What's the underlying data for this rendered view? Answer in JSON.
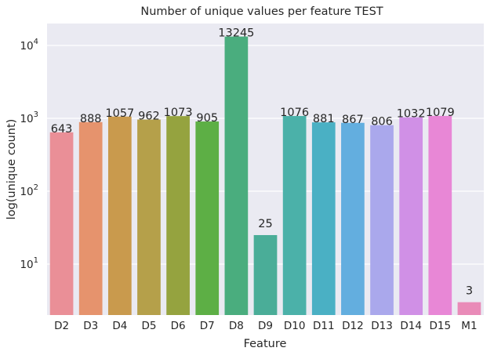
{
  "chart_data": {
    "type": "bar",
    "title": "Number of unique values per feature TEST",
    "xlabel": "Feature",
    "ylabel": "log(unique count)",
    "yscale": "log",
    "ylim": [
      2,
      20000
    ],
    "yticks": [
      {
        "value": 10,
        "base": "10",
        "exp": "1"
      },
      {
        "value": 100,
        "base": "10",
        "exp": "2"
      },
      {
        "value": 1000,
        "base": "10",
        "exp": "3"
      },
      {
        "value": 10000,
        "base": "10",
        "exp": "4"
      }
    ],
    "grid": true,
    "categories": [
      "D2",
      "D3",
      "D4",
      "D5",
      "D6",
      "D7",
      "D8",
      "D9",
      "D10",
      "D11",
      "D12",
      "D13",
      "D14",
      "D15",
      "M1"
    ],
    "values": [
      643,
      888,
      1057,
      962,
      1073,
      905,
      13245,
      25,
      1076,
      881,
      867,
      806,
      1032,
      1079,
      3
    ],
    "data_labels": [
      "643",
      "888",
      "1057",
      "962",
      "1073",
      "905",
      "13245",
      "25",
      "1076",
      "881",
      "867",
      "806",
      "1032",
      "1079",
      "3"
    ],
    "colors": [
      "#ea8f97",
      "#e6936d",
      "#c99a4d",
      "#b5a04a",
      "#95a33f",
      "#5daf45",
      "#4aad7e",
      "#4aad98",
      "#4bb1a9",
      "#4ab0c4",
      "#63aedf",
      "#aaa8ec",
      "#d090e6",
      "#e887d6",
      "#e98bb8"
    ],
    "background": "#eaeaf2"
  }
}
